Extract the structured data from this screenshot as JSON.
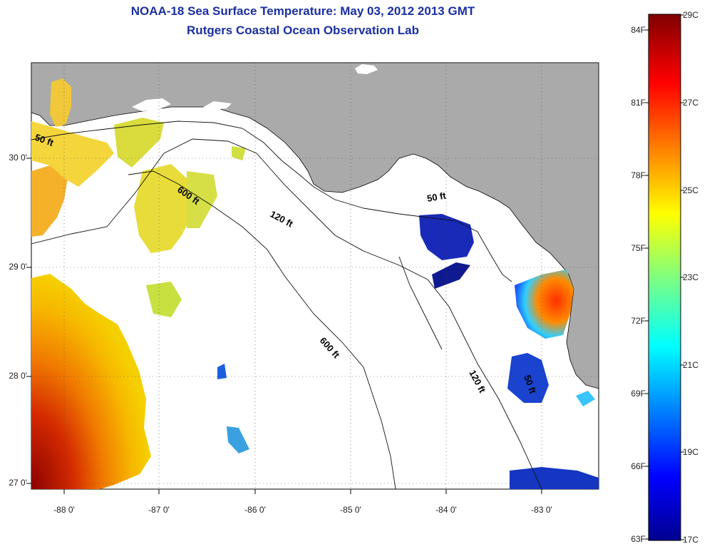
{
  "title_line1": "NOAA-18 Sea Surface Temperature:  May 03, 2012 2013 GMT",
  "title_line2": "Rutgers Coastal Ocean Observation Lab",
  "x_ticks": [
    "-88 0'",
    "-87 0'",
    "-86 0'",
    "-85 0'",
    "-84 0'",
    "-83 0'"
  ],
  "y_ticks": [
    "30 0'",
    "29 0'",
    "28 0'",
    "27 0'"
  ],
  "colorbar_f": [
    "84F",
    "81F",
    "78F",
    "75F",
    "72F",
    "69F",
    "66F",
    "63F"
  ],
  "colorbar_c": [
    "29C",
    "27C",
    "25C",
    "23C",
    "21C",
    "19C",
    "17C"
  ],
  "contours": [
    "50 ft",
    "600 ft",
    "120 ft",
    "50 ft",
    "600 ft",
    "120 ft",
    "50 ft"
  ],
  "colors": {
    "land": "#aaaaaa",
    "title": "#1a2fa0",
    "warm": "#a50f0f",
    "cold": "#1a1aa0"
  }
}
